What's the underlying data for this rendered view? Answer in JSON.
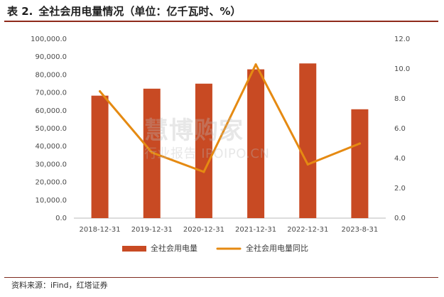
{
  "page": {
    "table_label": "表 2.",
    "title": "全社会用电量情况（单位：亿千瓦时、%）",
    "source": "资料来源：iFind，红塔证券",
    "watermark": {
      "line1": "慧博购家",
      "line2": "行业报告 IPOIPO.CN"
    }
  },
  "chart_data": {
    "type": "bar+line",
    "categories": [
      "2018-12-31",
      "2019-12-31",
      "2020-12-31",
      "2021-12-31",
      "2022-12-31",
      "2023-8-31"
    ],
    "series": [
      {
        "name": "全社会用电量",
        "type": "bar",
        "axis": "left",
        "values": [
          68400,
          72300,
          75100,
          83100,
          86400,
          60800
        ]
      },
      {
        "name": "全社会用电量同比",
        "type": "line",
        "axis": "right",
        "values": [
          8.5,
          4.4,
          3.1,
          10.3,
          3.6,
          5.0
        ]
      }
    ],
    "left_axis": {
      "ylim": [
        0,
        100000
      ],
      "ticks": [
        "0.0",
        "10,000.0",
        "20,000.0",
        "30,000.0",
        "40,000.0",
        "50,000.0",
        "60,000.0",
        "70,000.0",
        "80,000.0",
        "90,000.0",
        "100,000.0"
      ]
    },
    "right_axis": {
      "ylim": [
        0,
        12
      ],
      "ticks": [
        "0.0",
        "2.0",
        "4.0",
        "6.0",
        "8.0",
        "10.0",
        "12.0"
      ]
    },
    "legend": {
      "position": "bottom",
      "items": [
        "全社会用电量",
        "全社会用电量同比"
      ]
    },
    "colors": {
      "bar": "#c84a23",
      "line": "#e58a12",
      "axis": "#b9b9b9",
      "title_rule": "#8f2a1b"
    },
    "grid": false
  }
}
